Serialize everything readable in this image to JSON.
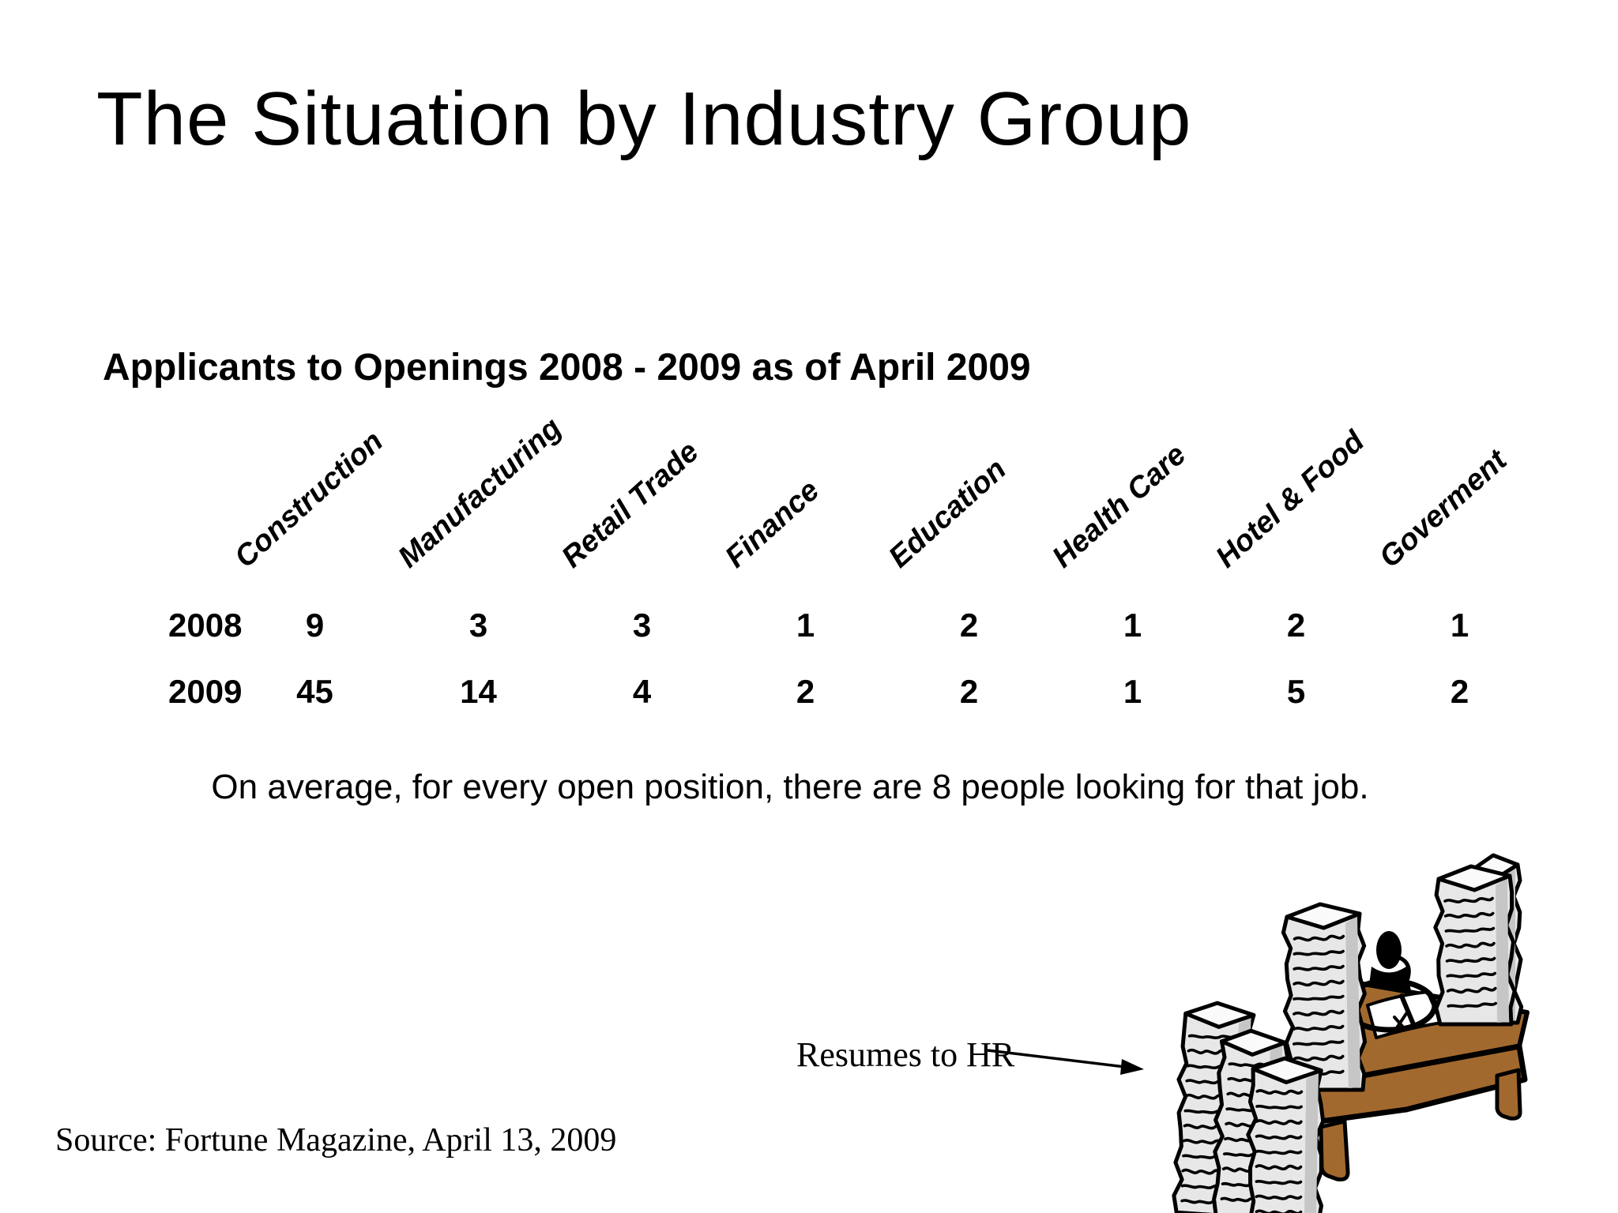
{
  "slide": {
    "title": "The Situation by Industry Group",
    "subtitle": "Applicants to Openings 2008 - 2009 as of April 2009",
    "note": "On average, for every open position, there are 8 people looking for that job.",
    "annotation_label": "Resumes to HR",
    "source": "Source: Fortune Magazine, April 13, 2009"
  },
  "table": {
    "columns": [
      "Construction",
      "Manufacturing",
      "Retail Trade",
      "Finance",
      "Education",
      "Health Care",
      "Hotel & Food",
      "Goverment"
    ],
    "rows": [
      {
        "year": "2008",
        "values": [
          "9",
          "3",
          "3",
          "1",
          "2",
          "1",
          "2",
          "1"
        ]
      },
      {
        "year": "2009",
        "values": [
          "45",
          "14",
          "4",
          "2",
          "2",
          "1",
          "5",
          "2"
        ]
      }
    ]
  },
  "clipart": {
    "label": "person-at-desk-with-resume-stacks",
    "desk_color": "#a2692e",
    "paper_color": "#e7e7e7",
    "paper_side_color": "#c6c6c6",
    "paper_top_color": "#fafafa",
    "outline_color": "#000000"
  }
}
